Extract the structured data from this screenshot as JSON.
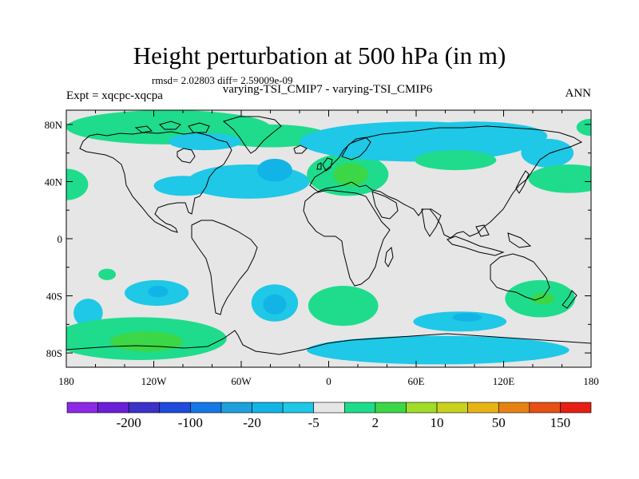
{
  "title": "Height perturbation at 500 hPa (in m)",
  "stats": "rmsd= 2.02803 diff= 2.59009e-09",
  "subtitle": "varying-TSI_CMIP7 - varying-TSI_CMIP6",
  "experiment": "Expt = xqcpc-xqcpa",
  "season": "ANN",
  "axes": {
    "x_ticks": [
      "180",
      "120W",
      "60W",
      "0",
      "60E",
      "120E",
      "180"
    ],
    "x_values": [
      -180,
      -120,
      -60,
      0,
      60,
      120,
      180
    ],
    "y_ticks": [
      "80N",
      "40N",
      "0",
      "40S",
      "80S"
    ],
    "y_values": [
      80,
      40,
      0,
      -40,
      -80
    ],
    "lon_range": [
      -180,
      180
    ],
    "lat_range": [
      -90,
      90
    ]
  },
  "colorbar": {
    "colors": [
      "#8c28e6",
      "#6a20d8",
      "#3c32c8",
      "#1e4bdc",
      "#1478e6",
      "#1ea0dc",
      "#12b4e6",
      "#1ec8e6",
      "#e6e6e6",
      "#1edc8c",
      "#3cd746",
      "#a0dc28",
      "#c8d21e",
      "#e6b414",
      "#e68214",
      "#e65014",
      "#e61e14"
    ],
    "labels": [
      "-200",
      "-100",
      "-20",
      "-5",
      "2",
      "10",
      "50",
      "150"
    ],
    "label_after_box": [
      1,
      3,
      5,
      7,
      9,
      11,
      13,
      15
    ]
  },
  "fill_colors": {
    "background": "#e6e6e6",
    "neg_light": "#1ec8e6",
    "neg_mid": "#12b4e6",
    "neg_dark": "#1ea0dc",
    "pos_light": "#1edc8c",
    "pos_mid": "#3cd746"
  },
  "fields": [
    {
      "sign": "pos",
      "level": 1,
      "lon": -110,
      "lat": 78,
      "rlon": 70,
      "rlat": 12
    },
    {
      "sign": "pos",
      "level": 1,
      "lon": -40,
      "lat": 72,
      "rlon": 40,
      "rlat": 8
    },
    {
      "sign": "neg",
      "level": 1,
      "lon": -85,
      "lat": 68,
      "rlon": 25,
      "rlat": 6
    },
    {
      "sign": "neg",
      "level": 1,
      "lon": -55,
      "lat": 40,
      "rlon": 42,
      "rlat": 12
    },
    {
      "sign": "neg",
      "level": 2,
      "lon": -37,
      "lat": 48,
      "rlon": 12,
      "rlat": 8
    },
    {
      "sign": "neg",
      "level": 1,
      "lon": -100,
      "lat": 37,
      "rlon": 20,
      "rlat": 7
    },
    {
      "sign": "pos",
      "level": 1,
      "lon": 13,
      "lat": 45,
      "rlon": 28,
      "rlat": 15
    },
    {
      "sign": "pos",
      "level": 2,
      "lon": 15,
      "lat": 45,
      "rlon": 12,
      "rlat": 8
    },
    {
      "sign": "neg",
      "level": 1,
      "lon": 60,
      "lat": 68,
      "rlon": 80,
      "rlat": 14
    },
    {
      "sign": "neg",
      "level": 1,
      "lon": 100,
      "lat": 72,
      "rlon": 50,
      "rlat": 10
    },
    {
      "sign": "neg",
      "level": 1,
      "lon": 150,
      "lat": 60,
      "rlon": 18,
      "rlat": 10
    },
    {
      "sign": "pos",
      "level": 1,
      "lon": 87,
      "lat": 55,
      "rlon": 28,
      "rlat": 7
    },
    {
      "sign": "pos",
      "level": 1,
      "lon": 165,
      "lat": 42,
      "rlon": 28,
      "rlat": 10
    },
    {
      "sign": "pos",
      "level": 1,
      "lon": -180,
      "lat": 38,
      "rlon": 15,
      "rlat": 11
    },
    {
      "sign": "pos",
      "level": 1,
      "lon": 180,
      "lat": 78,
      "rlon": 10,
      "rlat": 6
    },
    {
      "sign": "pos",
      "level": 1,
      "lon": -152,
      "lat": -25,
      "rlon": 6,
      "rlat": 4
    },
    {
      "sign": "neg",
      "level": 1,
      "lon": -118,
      "lat": -38,
      "rlon": 22,
      "rlat": 9
    },
    {
      "sign": "neg",
      "level": 2,
      "lon": -117,
      "lat": -37,
      "rlon": 7,
      "rlat": 4
    },
    {
      "sign": "neg",
      "level": 1,
      "lon": -165,
      "lat": -52,
      "rlon": 10,
      "rlat": 10
    },
    {
      "sign": "pos",
      "level": 1,
      "lon": -130,
      "lat": -70,
      "rlon": 60,
      "rlat": 15
    },
    {
      "sign": "pos",
      "level": 2,
      "lon": -125,
      "lat": -72,
      "rlon": 25,
      "rlat": 7
    },
    {
      "sign": "neg",
      "level": 1,
      "lon": -37,
      "lat": -45,
      "rlon": 16,
      "rlat": 13
    },
    {
      "sign": "neg",
      "level": 2,
      "lon": -37,
      "lat": -46,
      "rlon": 8,
      "rlat": 7
    },
    {
      "sign": "pos",
      "level": 1,
      "lon": 10,
      "lat": -47,
      "rlon": 24,
      "rlat": 14
    },
    {
      "sign": "neg",
      "level": 1,
      "lon": 75,
      "lat": -78,
      "rlon": 90,
      "rlat": 10
    },
    {
      "sign": "neg",
      "level": 1,
      "lon": 90,
      "lat": -58,
      "rlon": 32,
      "rlat": 7
    },
    {
      "sign": "neg",
      "level": 2,
      "lon": 95,
      "lat": -55,
      "rlon": 10,
      "rlat": 3
    },
    {
      "sign": "pos",
      "level": 1,
      "lon": 145,
      "lat": -42,
      "rlon": 24,
      "rlat": 13
    },
    {
      "sign": "pos",
      "level": 2,
      "lon": 147,
      "lat": -42,
      "rlon": 8,
      "rlat": 4
    }
  ]
}
